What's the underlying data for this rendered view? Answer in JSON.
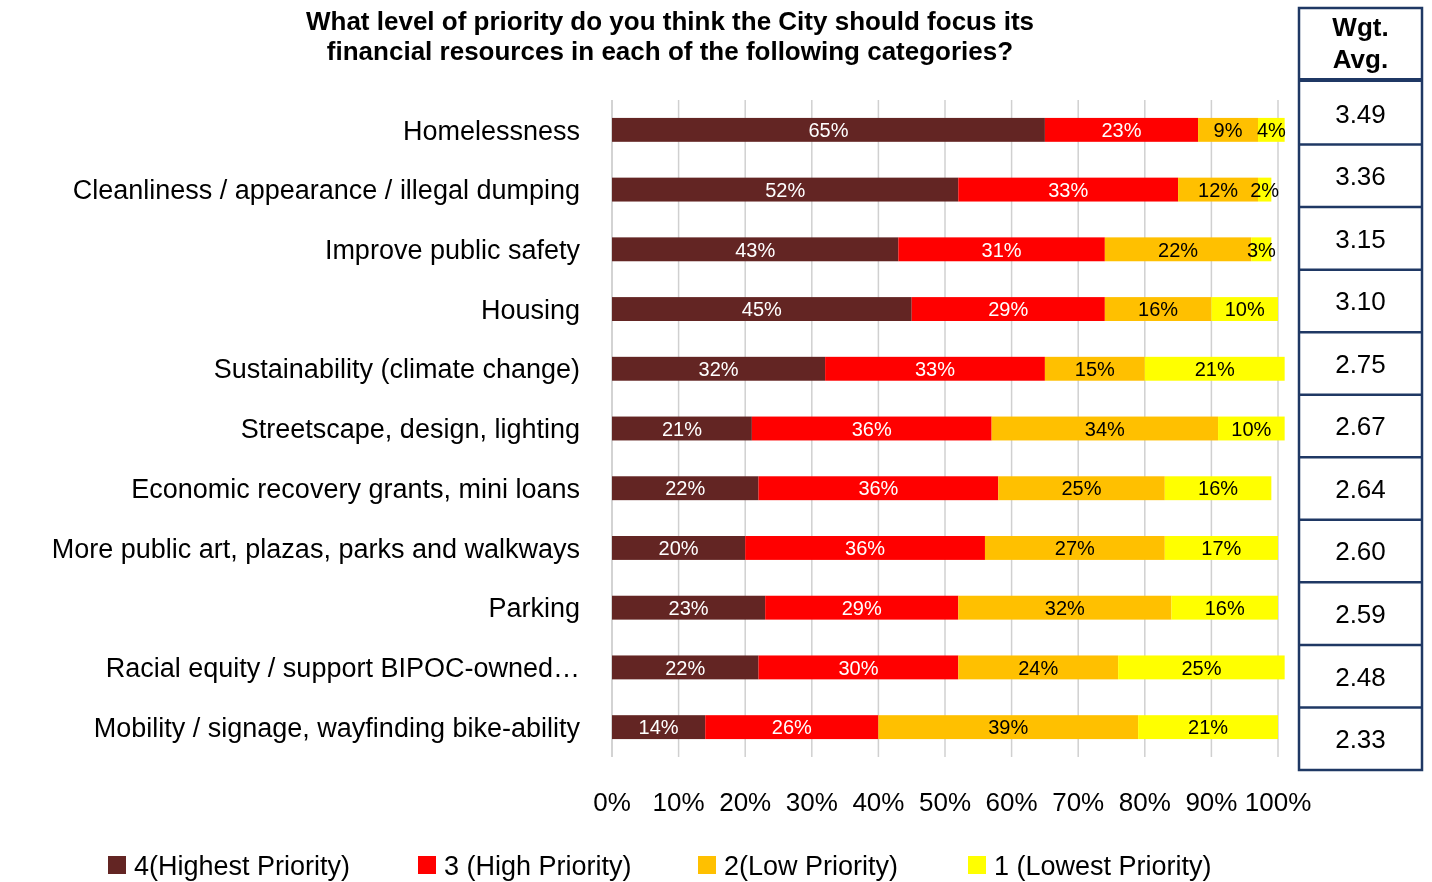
{
  "chart_data": {
    "type": "bar",
    "orientation": "horizontal",
    "stacked": true,
    "grid": "x",
    "legend": "bottom",
    "title": "What level of priority do you think the City should focus its\nfinancial resources in each of the following categories?",
    "categories": [
      "Homelessness",
      "Cleanliness / appearance / illegal dumping",
      "Improve public safety",
      "Housing",
      "Sustainability (climate change)",
      "Streetscape, design, lighting",
      "Economic recovery grants, mini loans",
      "More public art, plazas, parks and walkways",
      "Parking",
      "Racial equity / support BIPOC-owned…",
      "Mobility / signage, wayfinding bike-ability"
    ],
    "series": [
      {
        "name": "4(Highest Priority)",
        "color": "#632523",
        "values": [
          65,
          52,
          43,
          45,
          32,
          21,
          22,
          20,
          23,
          22,
          14
        ],
        "value_labels": [
          "65%",
          "52%",
          "43%",
          "45%",
          "32%",
          "21%",
          "22%",
          "20%",
          "23%",
          "22%",
          "14%"
        ]
      },
      {
        "name": "3 (High Priority)",
        "color": "#ff0000",
        "values": [
          23,
          33,
          31,
          29,
          33,
          36,
          36,
          36,
          29,
          30,
          26
        ],
        "value_labels": [
          "23%",
          "33%",
          "31%",
          "29%",
          "33%",
          "36%",
          "36%",
          "36%",
          "29%",
          "30%",
          "26%"
        ]
      },
      {
        "name": "2(Low Priority)",
        "color": "#ffc000",
        "values": [
          9,
          12,
          22,
          16,
          15,
          34,
          25,
          27,
          32,
          24,
          39
        ],
        "value_labels": [
          "9%",
          "12%",
          "22%",
          "16%",
          "15%",
          "34%",
          "25%",
          "27%",
          "32%",
          "24%",
          "39%"
        ]
      },
      {
        "name": "1 (Lowest Priority)",
        "color": "#ffff00",
        "values": [
          4,
          2,
          3,
          10,
          21,
          10,
          16,
          17,
          16,
          25,
          21
        ],
        "value_labels": [
          "4%",
          "2%",
          "3%",
          "10%",
          "21%",
          "10%",
          "16%",
          "17%",
          "16%",
          "25%",
          "21%"
        ]
      }
    ],
    "xlim": [
      0,
      101
    ],
    "xticks": [
      {
        "value": 0,
        "label": "0%"
      },
      {
        "value": 10,
        "label": "10%"
      },
      {
        "value": 20,
        "label": "20%"
      },
      {
        "value": 30,
        "label": "30%"
      },
      {
        "value": 40,
        "label": "40%"
      },
      {
        "value": 50,
        "label": "50%"
      },
      {
        "value": 60,
        "label": "60%"
      },
      {
        "value": 70,
        "label": "70%"
      },
      {
        "value": 80,
        "label": "80%"
      },
      {
        "value": 90,
        "label": "90%"
      },
      {
        "value": 100,
        "label": "100%"
      }
    ],
    "annotations": [
      "Wgt. Avg.",
      "3.49",
      "3.36",
      "3.15",
      "3.10",
      "2.75",
      "2.67",
      "2.64",
      "2.60",
      "2.59",
      "2.48",
      "2.33"
    ]
  }
}
